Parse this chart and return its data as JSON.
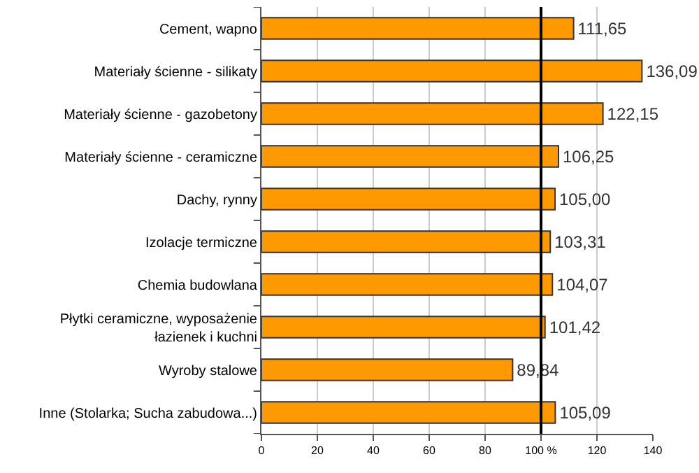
{
  "chart_data": {
    "type": "bar",
    "orientation": "horizontal",
    "categories": [
      "Cement, wapno",
      "Materiały ścienne - silikaty",
      "Materiały ścienne - gazobetony",
      "Materiały ścienne - ceramiczne",
      "Dachy, rynny",
      "Izolacje termiczne",
      "Chemia budowlana",
      "Płytki ceramiczne, wyposażenie\nłazienek i kuchni",
      "Wyroby stalowe",
      "Inne (Stolarka; Sucha zabudowa...)"
    ],
    "values": [
      111.65,
      136.09,
      122.15,
      106.25,
      105.0,
      103.31,
      104.07,
      101.42,
      89.84,
      105.09
    ],
    "value_labels": [
      "111,65",
      "136,09",
      "122,15",
      "106,25",
      "105,00",
      "103,31",
      "104,07",
      "101,42",
      "89,84",
      "105,09"
    ],
    "color": "#ff9900",
    "xlim": [
      0,
      140
    ],
    "xticks": [
      0,
      20,
      40,
      60,
      80,
      {
        "value": 100,
        "label": "100 %"
      },
      120,
      140
    ],
    "ref_lines": [
      {
        "axis": "x",
        "value": 100,
        "color": "#000000"
      }
    ],
    "grid": "x"
  }
}
